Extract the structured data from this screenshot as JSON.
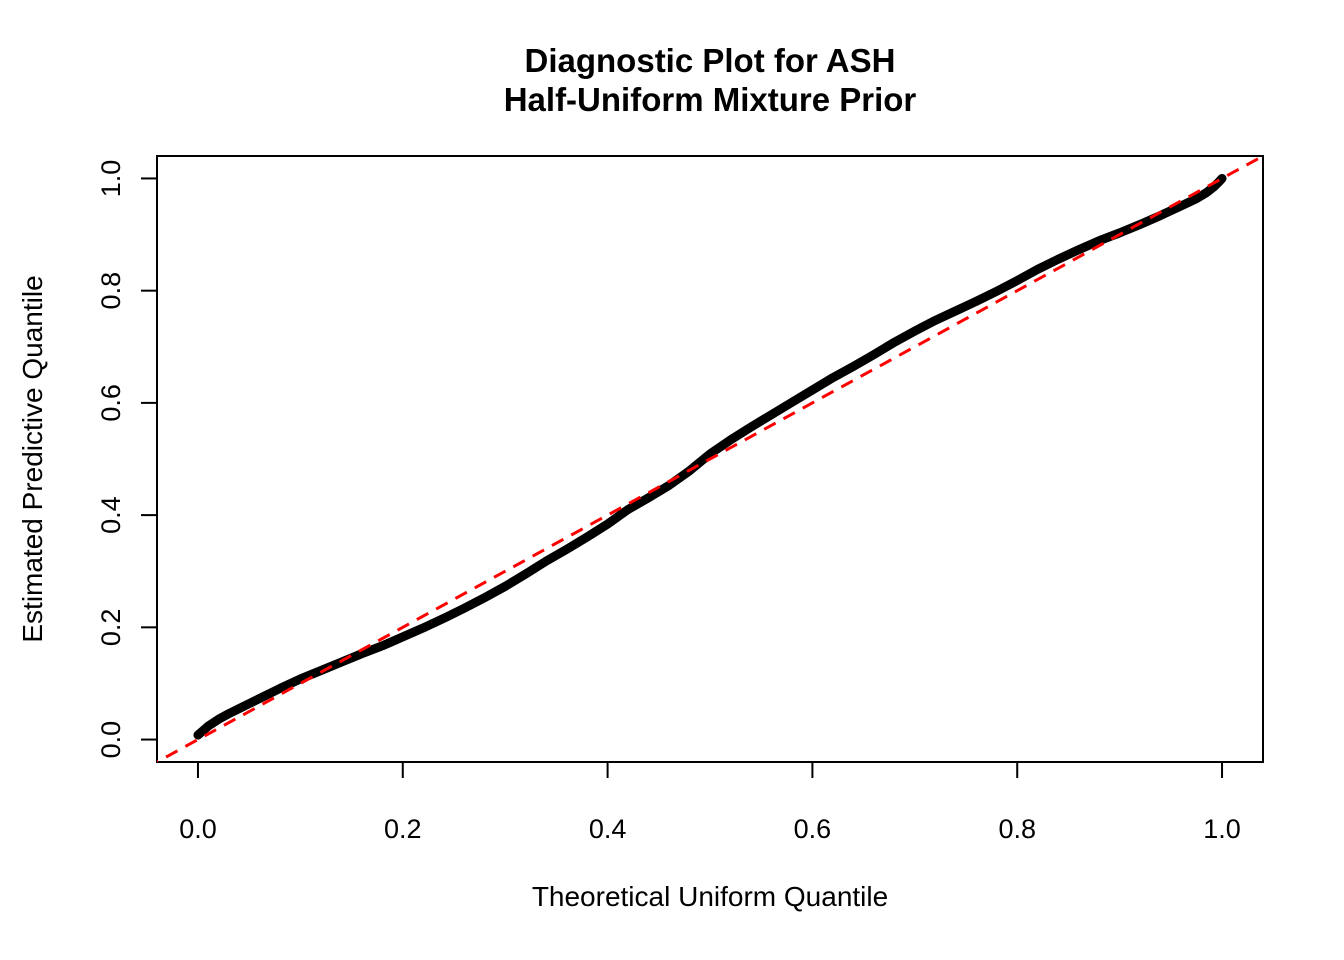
{
  "chart_data": {
    "type": "scatter",
    "title": "Diagnostic Plot for ASH\nHalf-Uniform Mixture Prior",
    "title_lines": [
      "Diagnostic Plot for ASH",
      "Half-Uniform Mixture Prior"
    ],
    "xlabel": "Theoretical Uniform Quantile",
    "ylabel": "Estimated Predictive Quantile",
    "xlim": [
      -0.04,
      1.04
    ],
    "ylim": [
      -0.04,
      1.04
    ],
    "grid": false,
    "legend": "none",
    "x_ticks": [
      0.0,
      0.2,
      0.4,
      0.6,
      0.8,
      1.0
    ],
    "x_tick_labels": [
      "0.0",
      "0.2",
      "0.4",
      "0.6",
      "0.8",
      "1.0"
    ],
    "y_ticks": [
      0.0,
      0.2,
      0.4,
      0.6,
      0.8,
      1.0
    ],
    "y_tick_labels": [
      "0.0",
      "0.2",
      "0.4",
      "0.6",
      "0.8",
      "1.0"
    ],
    "colors": {
      "curve": "#000000",
      "reference_line": "#FF0000",
      "frame": "#000000"
    },
    "series": [
      {
        "name": "estimated-vs-theoretical-quantiles",
        "type": "points-curve",
        "color": "#000000",
        "points": [
          [
            0.0,
            0.008
          ],
          [
            0.005,
            0.016
          ],
          [
            0.01,
            0.024
          ],
          [
            0.02,
            0.036
          ],
          [
            0.03,
            0.046
          ],
          [
            0.04,
            0.055
          ],
          [
            0.05,
            0.064
          ],
          [
            0.06,
            0.073
          ],
          [
            0.08,
            0.091
          ],
          [
            0.1,
            0.108
          ],
          [
            0.12,
            0.123
          ],
          [
            0.14,
            0.138
          ],
          [
            0.16,
            0.153
          ],
          [
            0.18,
            0.167
          ],
          [
            0.2,
            0.183
          ],
          [
            0.22,
            0.199
          ],
          [
            0.24,
            0.216
          ],
          [
            0.26,
            0.234
          ],
          [
            0.28,
            0.253
          ],
          [
            0.3,
            0.273
          ],
          [
            0.32,
            0.295
          ],
          [
            0.34,
            0.318
          ],
          [
            0.36,
            0.339
          ],
          [
            0.38,
            0.361
          ],
          [
            0.4,
            0.384
          ],
          [
            0.42,
            0.41
          ],
          [
            0.44,
            0.431
          ],
          [
            0.46,
            0.453
          ],
          [
            0.48,
            0.479
          ],
          [
            0.5,
            0.509
          ],
          [
            0.52,
            0.534
          ],
          [
            0.54,
            0.557
          ],
          [
            0.56,
            0.579
          ],
          [
            0.58,
            0.601
          ],
          [
            0.6,
            0.623
          ],
          [
            0.62,
            0.645
          ],
          [
            0.64,
            0.665
          ],
          [
            0.66,
            0.686
          ],
          [
            0.68,
            0.708
          ],
          [
            0.7,
            0.728
          ],
          [
            0.72,
            0.747
          ],
          [
            0.74,
            0.764
          ],
          [
            0.76,
            0.781
          ],
          [
            0.78,
            0.799
          ],
          [
            0.8,
            0.818
          ],
          [
            0.82,
            0.838
          ],
          [
            0.84,
            0.856
          ],
          [
            0.86,
            0.873
          ],
          [
            0.88,
            0.889
          ],
          [
            0.9,
            0.903
          ],
          [
            0.92,
            0.918
          ],
          [
            0.94,
            0.934
          ],
          [
            0.96,
            0.951
          ],
          [
            0.975,
            0.964
          ],
          [
            0.985,
            0.975
          ],
          [
            0.992,
            0.985
          ],
          [
            0.997,
            0.994
          ],
          [
            1.0,
            1.0
          ]
        ]
      },
      {
        "name": "identity-reference-line",
        "type": "line",
        "style": "dashed",
        "color": "#FF0000",
        "from": [
          -0.05,
          -0.05
        ],
        "to": [
          1.05,
          1.05
        ]
      }
    ]
  }
}
